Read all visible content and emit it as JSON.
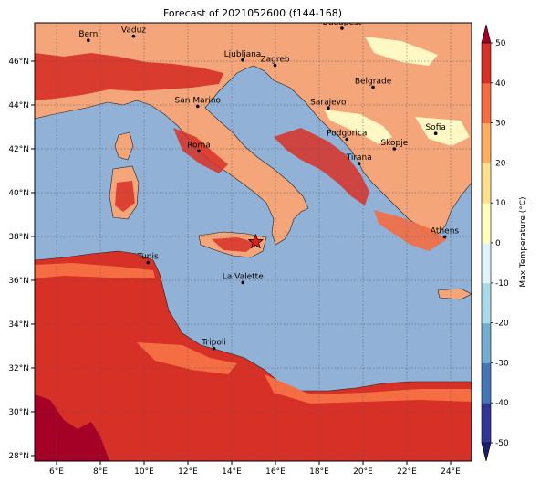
{
  "title": "Forecast of 2021052600 (f144-168)",
  "x_ticks": [
    "6°E",
    "8°E",
    "10°E",
    "12°E",
    "14°E",
    "16°E",
    "18°E",
    "20°E",
    "22°E",
    "24°E"
  ],
  "y_ticks": [
    "28°N",
    "30°N",
    "32°N",
    "34°N",
    "36°N",
    "38°N",
    "40°N",
    "42°N",
    "44°N",
    "46°N"
  ],
  "colorbar": {
    "label": "Max Temperature (°C)",
    "ticks": [
      "-50",
      "-40",
      "-30",
      "-20",
      "-10",
      "0",
      "10",
      "20",
      "30",
      "40",
      "50"
    ],
    "colors": [
      "#313695",
      "#4575b4",
      "#74add1",
      "#abd9e9",
      "#e0f3f8",
      "#ffffbf",
      "#fee090",
      "#fdae61",
      "#f46d43",
      "#d73027",
      "#a50026"
    ]
  },
  "cities": [
    {
      "name": "Bern",
      "lon": 7.45,
      "lat": 46.95
    },
    {
      "name": "Vaduz",
      "lon": 9.52,
      "lat": 47.14
    },
    {
      "name": "Budapest",
      "lon": 19.04,
      "lat": 47.5
    },
    {
      "name": "Ljubljana",
      "lon": 14.5,
      "lat": 46.05
    },
    {
      "name": "Zagreb",
      "lon": 15.98,
      "lat": 45.81
    },
    {
      "name": "Belgrade",
      "lon": 20.46,
      "lat": 44.81
    },
    {
      "name": "San Marino",
      "lon": 12.45,
      "lat": 43.94
    },
    {
      "name": "Sarajevo",
      "lon": 18.41,
      "lat": 43.86
    },
    {
      "name": "Sofia",
      "lon": 23.32,
      "lat": 42.7
    },
    {
      "name": "Podgorica",
      "lon": 19.26,
      "lat": 42.44
    },
    {
      "name": "Skopje",
      "lon": 21.43,
      "lat": 42.0
    },
    {
      "name": "Roma",
      "lon": 12.5,
      "lat": 41.9
    },
    {
      "name": "Tirana",
      "lon": 19.82,
      "lat": 41.33
    },
    {
      "name": "Athens",
      "lon": 23.73,
      "lat": 37.98
    },
    {
      "name": "Tunis",
      "lon": 10.18,
      "lat": 36.81
    },
    {
      "name": "La Valette",
      "lon": 14.51,
      "lat": 35.9
    },
    {
      "name": "Tripoli",
      "lon": 13.19,
      "lat": 32.89
    }
  ],
  "marker": {
    "lon": 15.1,
    "lat": 37.75
  }
}
